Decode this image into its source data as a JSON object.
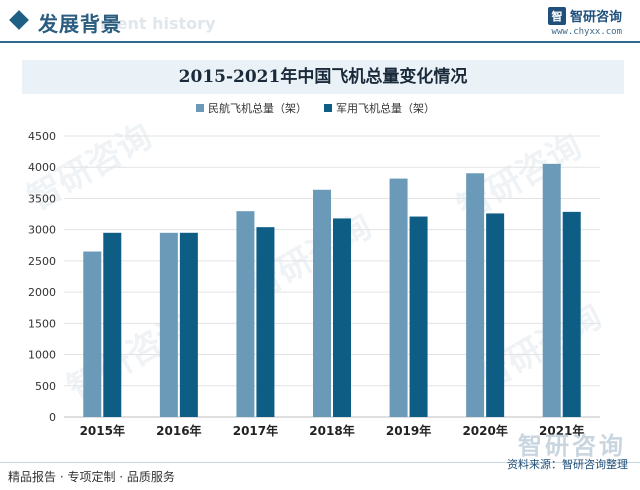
{
  "header": {
    "section_title": "发展背景",
    "section_subtitle": "ment history",
    "brand_name": "智研咨询",
    "brand_logo_letter": "智",
    "brand_url": "www.chyxx.com"
  },
  "chart_title": "2015-2021年中国飞机总量变化情况",
  "chart_data": {
    "type": "bar",
    "title": "2015-2021年中国飞机总量变化情况",
    "categories": [
      "2015年",
      "2016年",
      "2017年",
      "2018年",
      "2019年",
      "2020年",
      "2021年"
    ],
    "series": [
      {
        "name": "民航飞机总量（架）",
        "color": "#6a9ab7",
        "values": [
          2650,
          2950,
          3296,
          3639,
          3818,
          3903,
          4054
        ]
      },
      {
        "name": "军用飞机总量（架）",
        "color": "#0d5d84",
        "values": [
          2950,
          2950,
          3040,
          3180,
          3210,
          3260,
          3285
        ]
      }
    ],
    "ylim": [
      0,
      4500
    ],
    "yticks": [
      0,
      500,
      1000,
      1500,
      2000,
      2500,
      3000,
      3500,
      4000,
      4500
    ],
    "grid": true,
    "legend_position": "top-center",
    "xlabel": "",
    "ylabel": ""
  },
  "footer": {
    "left": "精品报告 · 专项定制 · 品质服务",
    "right": "资料来源：智研咨询整理",
    "watermark_text": "智研咨询"
  }
}
